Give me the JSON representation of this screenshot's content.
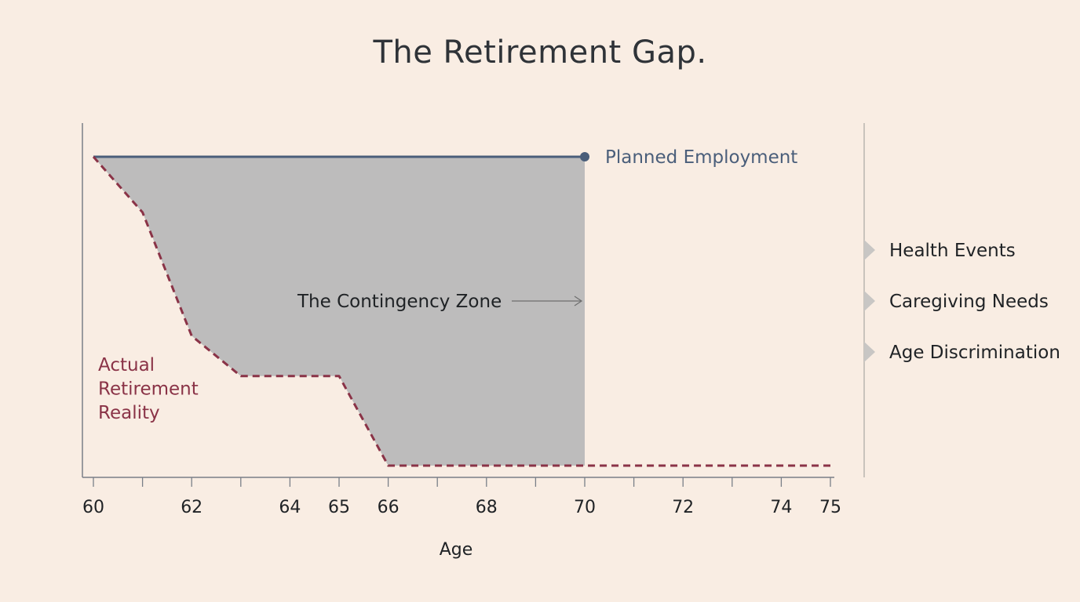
{
  "title": "The Retirement Gap.",
  "chart_data": {
    "type": "line",
    "title": "The Retirement Gap.",
    "xlabel": "Age",
    "ylabel": "",
    "xlim": [
      60,
      75
    ],
    "ylim": [
      0,
      1
    ],
    "x_ticks": [
      60,
      62,
      64,
      65,
      66,
      68,
      70,
      72,
      74,
      75
    ],
    "x_minor_ticks": [
      60,
      61,
      62,
      63,
      64,
      65,
      66,
      67,
      68,
      69,
      70,
      71,
      72,
      73,
      74,
      75
    ],
    "series": [
      {
        "name": "Planned Employment",
        "style": "solid",
        "color": "#4a5e7a",
        "points": [
          [
            60,
            1.0
          ],
          [
            70,
            1.0
          ]
        ]
      },
      {
        "name": "Actual Retirement Reality",
        "style": "dashed",
        "color": "#8a3347",
        "points": [
          [
            60,
            1.0
          ],
          [
            61,
            0.82
          ],
          [
            62,
            0.42
          ],
          [
            63,
            0.29
          ],
          [
            65,
            0.29
          ],
          [
            66,
            0.0
          ],
          [
            75,
            0.0
          ]
        ]
      }
    ],
    "shaded_region": {
      "label": "The Contingency Zone",
      "color": "#bdbcbc",
      "x_end": 70
    },
    "factors": [
      "Health Events",
      "Caregiving Needs",
      "Age Discrimination"
    ],
    "colors": {
      "background": "#f9ede3",
      "axis": "#7a7f88",
      "planned": "#4a5e7a",
      "actual": "#8a3347",
      "zone": "#bdbcbc",
      "factor_marker": "#c8c6c4"
    }
  }
}
